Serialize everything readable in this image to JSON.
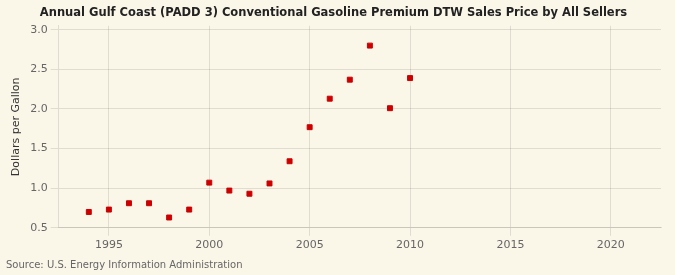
{
  "chart_data": {
    "type": "scatter",
    "title": "Annual Gulf Coast (PADD 3) Conventional Gasoline Premium DTW Sales Price by All Sellers",
    "y_label": "Dollars per Gallon",
    "annotations": [
      "Source: U.S. Energy Information Administration"
    ],
    "x": [
      1994,
      1995,
      1996,
      1997,
      1998,
      1999,
      2000,
      2001,
      2002,
      2003,
      2004,
      2005,
      2006,
      2007,
      2008,
      2009,
      2010
    ],
    "values": [
      0.7,
      0.73,
      0.81,
      0.81,
      0.63,
      0.73,
      1.07,
      0.97,
      0.93,
      1.06,
      1.34,
      1.77,
      2.13,
      2.37,
      2.8,
      2.01,
      2.39
    ],
    "color": "#CC0000",
    "marker": "square",
    "xlim": [
      1992.5,
      2022.5
    ],
    "ylim": [
      0.5,
      3.05
    ],
    "xticks": [
      1995,
      2000,
      2005,
      2010,
      2015,
      2020
    ],
    "yticks": [
      0.5,
      {
        "value": 1.0,
        "label": "1.0"
      },
      1.5,
      {
        "value": 2.0,
        "label": "2.0"
      },
      2.5,
      {
        "value": 3.0,
        "label": "3.0"
      }
    ],
    "grid": true
  }
}
